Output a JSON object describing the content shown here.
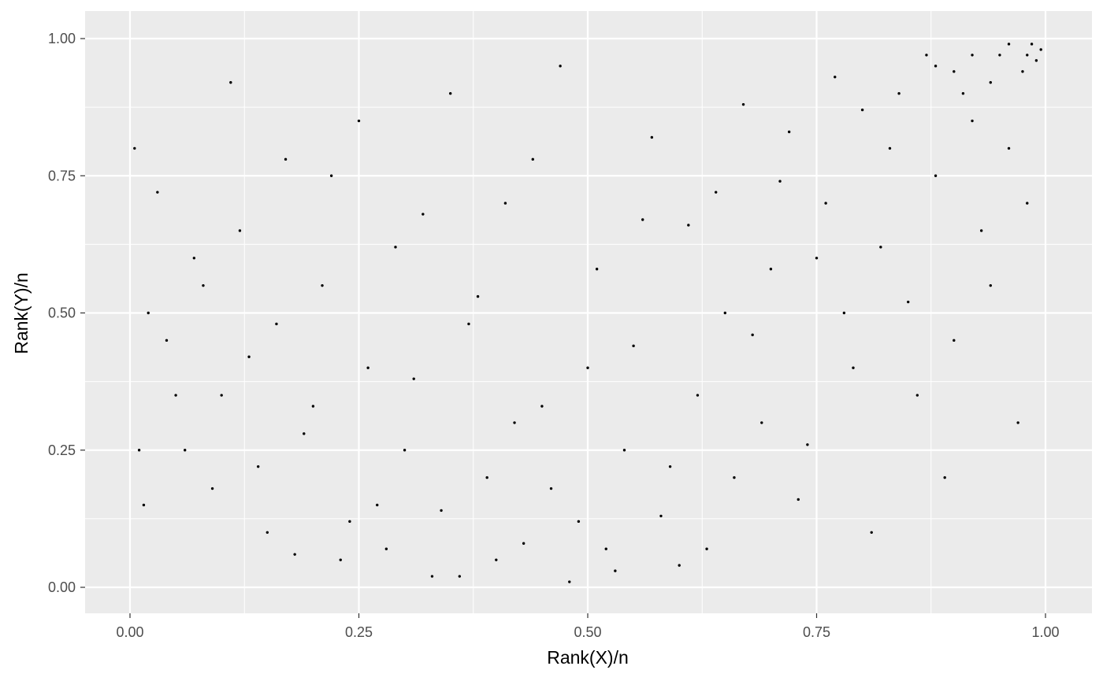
{
  "chart_data": {
    "type": "scatter",
    "title": "",
    "xlabel": "Rank(X)/n",
    "ylabel": "Rank(Y)/n",
    "xlim": [
      0,
      1
    ],
    "ylim": [
      0,
      1
    ],
    "x_ticks": [
      "0.00",
      "0.25",
      "0.50",
      "0.75",
      "1.00"
    ],
    "y_ticks": [
      "0.00",
      "0.25",
      "0.50",
      "0.75",
      "1.00"
    ],
    "x_tick_values": [
      0,
      0.25,
      0.5,
      0.75,
      1
    ],
    "y_tick_values": [
      0,
      0.25,
      0.5,
      0.75,
      1
    ],
    "grid": true,
    "legend": "none",
    "panel_color": "#ebebeb",
    "grid_color": "#ffffff",
    "point_color": "#000000",
    "series": [
      {
        "points": [
          [
            0.01,
            0.25
          ],
          [
            0.02,
            0.5
          ],
          [
            0.03,
            0.72
          ],
          [
            0.05,
            0.35
          ],
          [
            0.07,
            0.6
          ],
          [
            0.09,
            0.18
          ],
          [
            0.11,
            0.92
          ],
          [
            0.13,
            0.42
          ],
          [
            0.15,
            0.1
          ],
          [
            0.17,
            0.78
          ],
          [
            0.19,
            0.28
          ],
          [
            0.21,
            0.55
          ],
          [
            0.23,
            0.05
          ],
          [
            0.25,
            0.85
          ],
          [
            0.27,
            0.15
          ],
          [
            0.29,
            0.62
          ],
          [
            0.31,
            0.38
          ],
          [
            0.33,
            0.02
          ],
          [
            0.35,
            0.9
          ],
          [
            0.37,
            0.48
          ],
          [
            0.39,
            0.2
          ],
          [
            0.41,
            0.7
          ],
          [
            0.43,
            0.08
          ],
          [
            0.45,
            0.33
          ],
          [
            0.47,
            0.95
          ],
          [
            0.49,
            0.12
          ],
          [
            0.51,
            0.58
          ],
          [
            0.53,
            0.03
          ],
          [
            0.55,
            0.44
          ],
          [
            0.57,
            0.82
          ],
          [
            0.59,
            0.22
          ],
          [
            0.61,
            0.66
          ],
          [
            0.63,
            0.07
          ],
          [
            0.65,
            0.5
          ],
          [
            0.67,
            0.88
          ],
          [
            0.69,
            0.3
          ],
          [
            0.71,
            0.74
          ],
          [
            0.73,
            0.16
          ],
          [
            0.75,
            0.6
          ],
          [
            0.77,
            0.93
          ],
          [
            0.79,
            0.4
          ],
          [
            0.81,
            0.1
          ],
          [
            0.83,
            0.8
          ],
          [
            0.85,
            0.52
          ],
          [
            0.87,
            0.97
          ],
          [
            0.89,
            0.2
          ],
          [
            0.91,
            0.9
          ],
          [
            0.93,
            0.65
          ],
          [
            0.95,
            0.97
          ],
          [
            0.97,
            0.3
          ],
          [
            0.985,
            0.99
          ],
          [
            0.99,
            0.96
          ],
          [
            0.995,
            0.98
          ],
          [
            0.975,
            0.94
          ],
          [
            0.96,
            0.99
          ],
          [
            0.94,
            0.92
          ],
          [
            0.92,
            0.97
          ],
          [
            0.9,
            0.94
          ],
          [
            0.88,
            0.95
          ],
          [
            0.98,
            0.97
          ],
          [
            0.005,
            0.8
          ],
          [
            0.015,
            0.15
          ],
          [
            0.04,
            0.45
          ],
          [
            0.06,
            0.25
          ],
          [
            0.08,
            0.55
          ],
          [
            0.1,
            0.35
          ],
          [
            0.12,
            0.65
          ],
          [
            0.14,
            0.22
          ],
          [
            0.16,
            0.48
          ],
          [
            0.18,
            0.06
          ],
          [
            0.2,
            0.33
          ],
          [
            0.22,
            0.75
          ],
          [
            0.24,
            0.12
          ],
          [
            0.26,
            0.4
          ],
          [
            0.28,
            0.07
          ],
          [
            0.3,
            0.25
          ],
          [
            0.32,
            0.68
          ],
          [
            0.34,
            0.14
          ],
          [
            0.36,
            0.02
          ],
          [
            0.38,
            0.53
          ],
          [
            0.4,
            0.05
          ],
          [
            0.42,
            0.3
          ],
          [
            0.44,
            0.78
          ],
          [
            0.46,
            0.18
          ],
          [
            0.48,
            0.01
          ],
          [
            0.5,
            0.4
          ],
          [
            0.52,
            0.07
          ],
          [
            0.54,
            0.25
          ],
          [
            0.56,
            0.67
          ],
          [
            0.58,
            0.13
          ],
          [
            0.6,
            0.04
          ],
          [
            0.62,
            0.35
          ],
          [
            0.64,
            0.72
          ],
          [
            0.66,
            0.2
          ],
          [
            0.68,
            0.46
          ],
          [
            0.7,
            0.58
          ],
          [
            0.72,
            0.83
          ],
          [
            0.74,
            0.26
          ],
          [
            0.76,
            0.7
          ],
          [
            0.78,
            0.5
          ],
          [
            0.8,
            0.87
          ],
          [
            0.82,
            0.62
          ],
          [
            0.84,
            0.9
          ],
          [
            0.86,
            0.35
          ],
          [
            0.88,
            0.75
          ],
          [
            0.9,
            0.45
          ],
          [
            0.92,
            0.85
          ],
          [
            0.94,
            0.55
          ],
          [
            0.96,
            0.8
          ],
          [
            0.98,
            0.7
          ]
        ]
      }
    ]
  }
}
